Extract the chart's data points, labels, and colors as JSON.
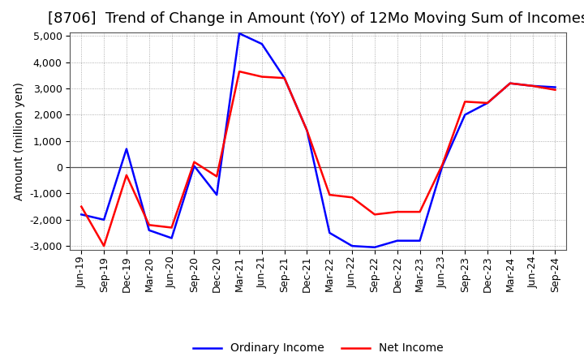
{
  "title": "[8706]  Trend of Change in Amount (YoY) of 12Mo Moving Sum of Incomes",
  "ylabel": "Amount (million yen)",
  "background_color": "#ffffff",
  "plot_bg_color": "#ffffff",
  "grid_color": "#999999",
  "x_labels": [
    "Jun-19",
    "Sep-19",
    "Dec-19",
    "Mar-20",
    "Jun-20",
    "Sep-20",
    "Dec-20",
    "Mar-21",
    "Jun-21",
    "Sep-21",
    "Dec-21",
    "Mar-22",
    "Jun-22",
    "Sep-22",
    "Dec-22",
    "Mar-23",
    "Jun-23",
    "Sep-23",
    "Dec-23",
    "Mar-24",
    "Jun-24",
    "Sep-24"
  ],
  "ordinary_income": [
    -1800,
    -2000,
    700,
    -2400,
    -2700,
    50,
    -1050,
    5100,
    4700,
    3400,
    1400,
    -2500,
    -3000,
    -3050,
    -2800,
    -2800,
    50,
    2000,
    2450,
    3200,
    3100,
    3050
  ],
  "net_income": [
    -1500,
    -3000,
    -300,
    -2200,
    -2300,
    200,
    -350,
    3650,
    3450,
    3400,
    1400,
    -1050,
    -1150,
    -1800,
    -1700,
    -1700,
    100,
    2500,
    2450,
    3200,
    3100,
    2950
  ],
  "ordinary_color": "#0000ff",
  "net_color": "#ff0000",
  "ylim_min": -3000,
  "ylim_max": 5000,
  "yticks": [
    -3000,
    -2000,
    -1000,
    0,
    1000,
    2000,
    3000,
    4000,
    5000
  ],
  "line_width": 1.8,
  "title_fontsize": 13,
  "axis_label_fontsize": 10,
  "tick_fontsize": 9,
  "legend_fontsize": 10,
  "legend_label_ordinary": "Ordinary Income",
  "legend_label_net": "Net Income"
}
